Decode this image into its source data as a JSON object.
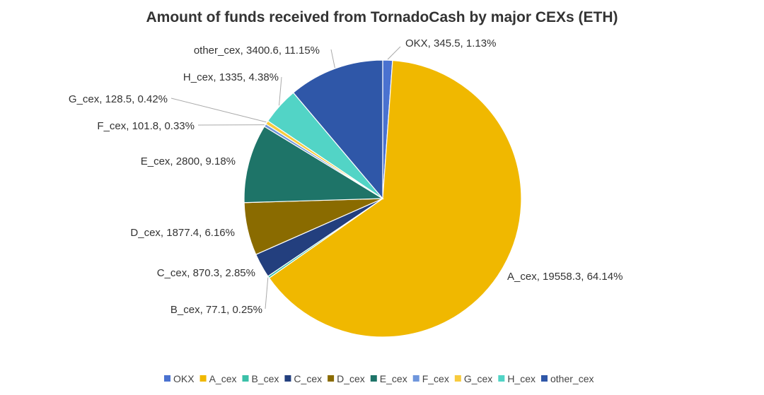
{
  "chart_data": {
    "type": "pie",
    "title": "Amount of funds received from TornadoCash by major CEXs (ETH)",
    "legend_position": "bottom",
    "slices": [
      {
        "name": "OKX",
        "value": 345.5,
        "percent": "1.13%",
        "color": "#4a72d0",
        "label": "OKX, 345.5, 1.13%"
      },
      {
        "name": "A_cex",
        "value": 19558.3,
        "percent": "64.14%",
        "color": "#f0b800",
        "label": "A_cex, 19558.3, 64.14%"
      },
      {
        "name": "B_cex",
        "value": 77.1,
        "percent": "0.25%",
        "color": "#3bc0a8",
        "label": "B_cex, 77.1, 0.25%"
      },
      {
        "name": "C_cex",
        "value": 870.3,
        "percent": "2.85%",
        "color": "#233f7e",
        "label": "C_cex, 870.3, 2.85%"
      },
      {
        "name": "D_cex",
        "value": 1877.4,
        "percent": "6.16%",
        "color": "#8a6b00",
        "label": "D_cex, 1877.4, 6.16%"
      },
      {
        "name": "E_cex",
        "value": 2800,
        "percent": "9.18%",
        "color": "#1e7468",
        "label": "E_cex, 2800, 9.18%"
      },
      {
        "name": "F_cex",
        "value": 101.8,
        "percent": "0.33%",
        "color": "#6f96dc",
        "label": "F_cex, 101.8, 0.33%"
      },
      {
        "name": "G_cex",
        "value": 128.5,
        "percent": "0.42%",
        "color": "#f8cb3e",
        "label": "G_cex, 128.5, 0.42%"
      },
      {
        "name": "H_cex",
        "value": 1335,
        "percent": "4.38%",
        "color": "#52d4c6",
        "label": "H_cex, 1335, 4.38%"
      },
      {
        "name": "other_cex",
        "value": 3400.6,
        "percent": "11.15%",
        "color": "#2f57a8",
        "label": "other_cex, 3400.6, 11.15%"
      }
    ]
  }
}
